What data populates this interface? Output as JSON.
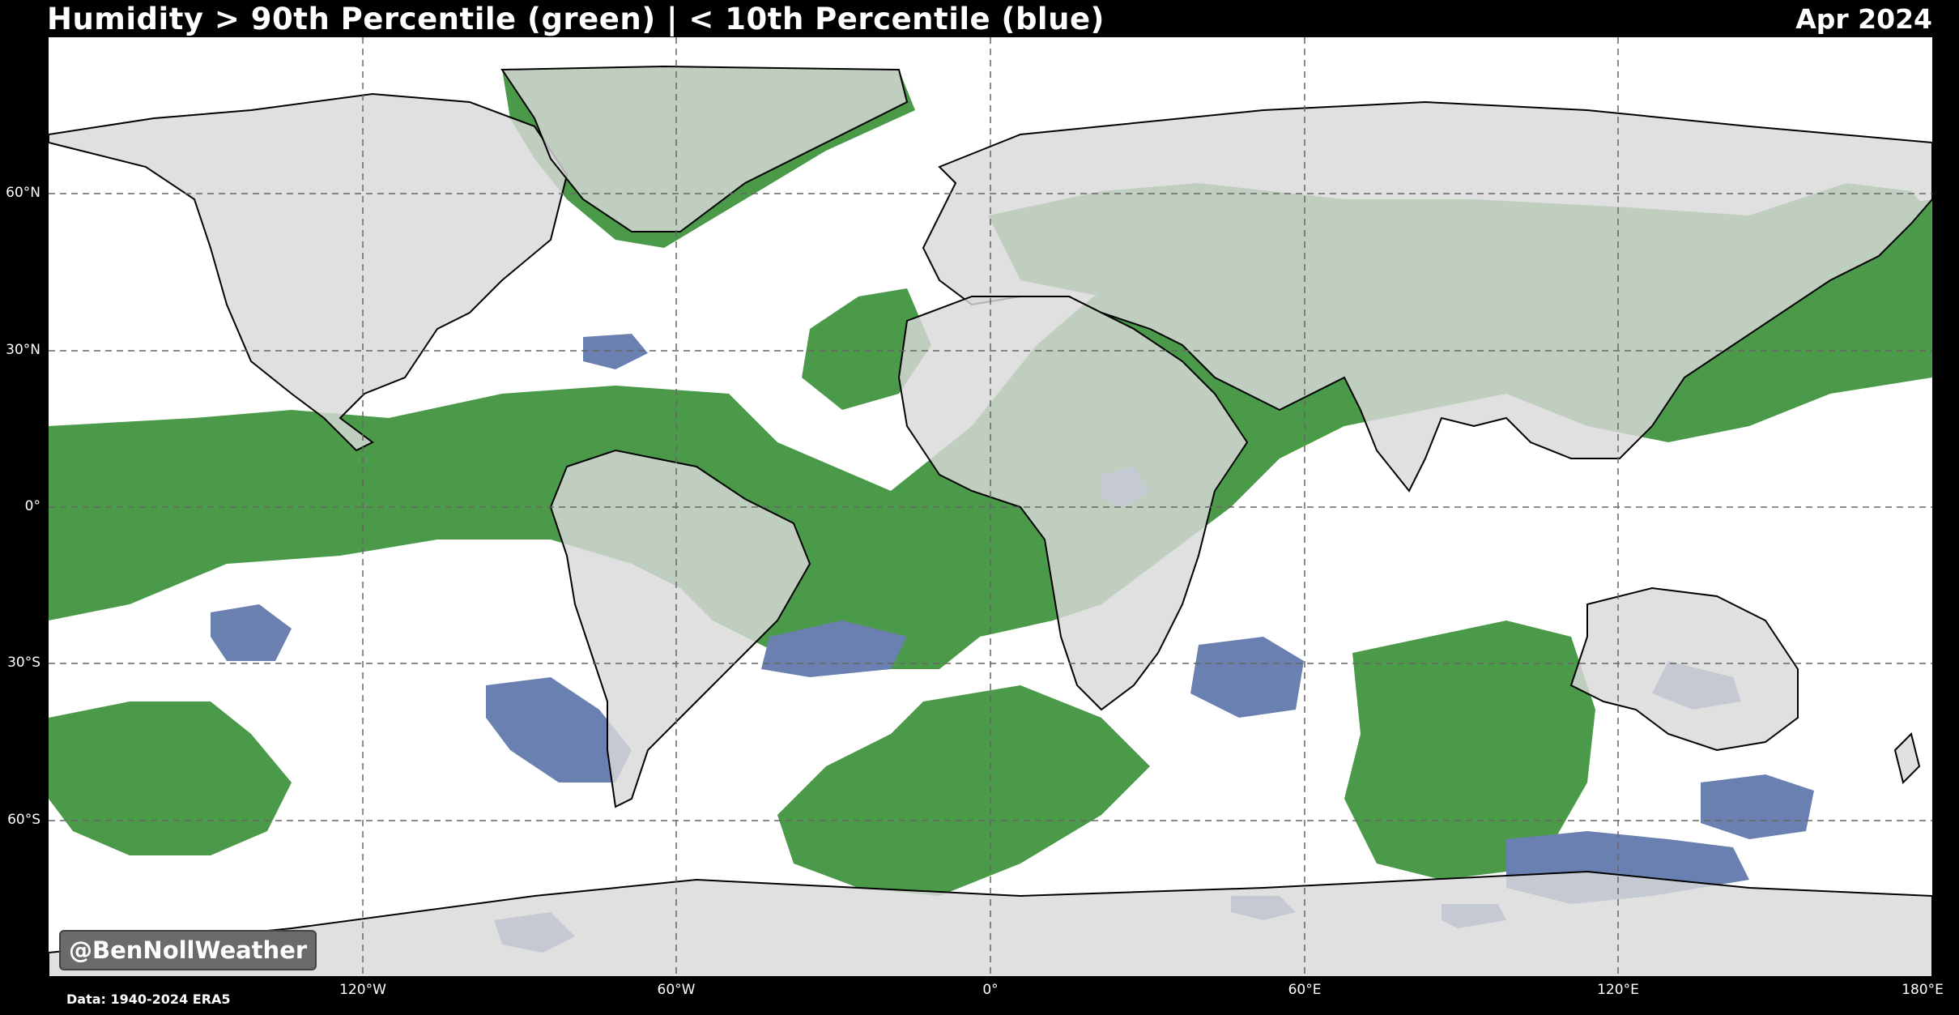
{
  "header": {
    "title": "Humidity > 90th Percentile (green) | < 10th Percentile (blue)",
    "date": "Apr 2024"
  },
  "map": {
    "land_color": "#d9d9d9",
    "ocean_color": "#ffffff",
    "high_color": "#4a9a4a",
    "low_color": "#6a80b0",
    "border_color": "#000000",
    "grid": true,
    "lat_labels": [
      "60°N",
      "30°N",
      "0°",
      "30°S",
      "60°S"
    ],
    "lon_labels": [
      "120°W",
      "60°W",
      "0°",
      "60°E",
      "120°E",
      "180°E"
    ]
  },
  "watermark": "@BenNollWeather",
  "source": "Data: 1940-2024 ERA5"
}
